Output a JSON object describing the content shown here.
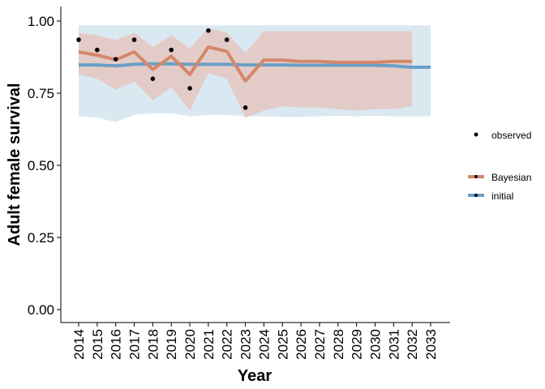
{
  "chart_data": {
    "type": "line",
    "title": "",
    "xlabel": "Year",
    "ylabel": "Adult female survival",
    "x": [
      2014,
      2015,
      2016,
      2017,
      2018,
      2019,
      2020,
      2021,
      2022,
      2023,
      2024,
      2025,
      2026,
      2027,
      2028,
      2029,
      2030,
      2031,
      2032,
      2033
    ],
    "xtick_labels": [
      "2014",
      "2015",
      "2016",
      "2017",
      "2018",
      "2019",
      "2020",
      "2021",
      "2022",
      "2023",
      "2024",
      "2025",
      "2026",
      "2027",
      "2028",
      "2029",
      "2030",
      "2031",
      "2032",
      "2033"
    ],
    "ylim": [
      0,
      1
    ],
    "yticks": [
      0.0,
      0.25,
      0.5,
      0.75,
      1.0
    ],
    "ytick_labels": [
      "0.00",
      "0.25",
      "0.50",
      "0.75",
      "1.00"
    ],
    "grid": false,
    "legend_position": "right",
    "observed": {
      "name": "observed",
      "x": [
        2014,
        2015,
        2016,
        2017,
        2018,
        2019,
        2020,
        2021,
        2022,
        2023
      ],
      "y": [
        0.935,
        0.9,
        0.868,
        0.935,
        0.8,
        0.9,
        0.767,
        0.967,
        0.935,
        0.7
      ]
    },
    "series": [
      {
        "name": "Bayesian",
        "color": "#D4876A",
        "band_color": "#E3C9C3",
        "x": [
          2014,
          2015,
          2016,
          2017,
          2018,
          2019,
          2020,
          2021,
          2022,
          2023,
          2024,
          2025,
          2026,
          2027,
          2028,
          2029,
          2030,
          2031,
          2032
        ],
        "y": [
          0.893,
          0.882,
          0.866,
          0.893,
          0.832,
          0.878,
          0.815,
          0.91,
          0.895,
          0.792,
          0.865,
          0.865,
          0.86,
          0.86,
          0.857,
          0.857,
          0.857,
          0.86,
          0.86
        ],
        "lower": [
          0.815,
          0.8,
          0.762,
          0.79,
          0.725,
          0.77,
          0.69,
          0.82,
          0.8,
          0.665,
          0.69,
          0.705,
          0.7,
          0.7,
          0.695,
          0.69,
          0.695,
          0.695,
          0.705
        ],
        "upper": [
          0.96,
          0.95,
          0.935,
          0.96,
          0.91,
          0.95,
          0.905,
          0.975,
          0.96,
          0.89,
          0.965,
          0.965,
          0.965,
          0.965,
          0.965,
          0.965,
          0.965,
          0.965,
          0.965
        ]
      },
      {
        "name": "initial",
        "color": "#6A9FC6",
        "band_color": "#D6E6F1",
        "x": [
          2014,
          2015,
          2016,
          2017,
          2018,
          2019,
          2020,
          2021,
          2022,
          2023,
          2024,
          2025,
          2026,
          2027,
          2028,
          2029,
          2030,
          2031,
          2032,
          2033
        ],
        "y": [
          0.848,
          0.848,
          0.845,
          0.85,
          0.852,
          0.852,
          0.85,
          0.85,
          0.85,
          0.848,
          0.848,
          0.848,
          0.847,
          0.847,
          0.847,
          0.847,
          0.847,
          0.845,
          0.84,
          0.84
        ],
        "lower": [
          0.67,
          0.665,
          0.65,
          0.675,
          0.68,
          0.68,
          0.67,
          0.675,
          0.675,
          0.67,
          0.67,
          0.668,
          0.668,
          0.67,
          0.672,
          0.67,
          0.672,
          0.67,
          0.67,
          0.67
        ],
        "upper": [
          0.985,
          0.985,
          0.985,
          0.985,
          0.985,
          0.985,
          0.985,
          0.985,
          0.985,
          0.985,
          0.985,
          0.985,
          0.985,
          0.985,
          0.985,
          0.985,
          0.985,
          0.985,
          0.985,
          0.985
        ]
      }
    ]
  }
}
